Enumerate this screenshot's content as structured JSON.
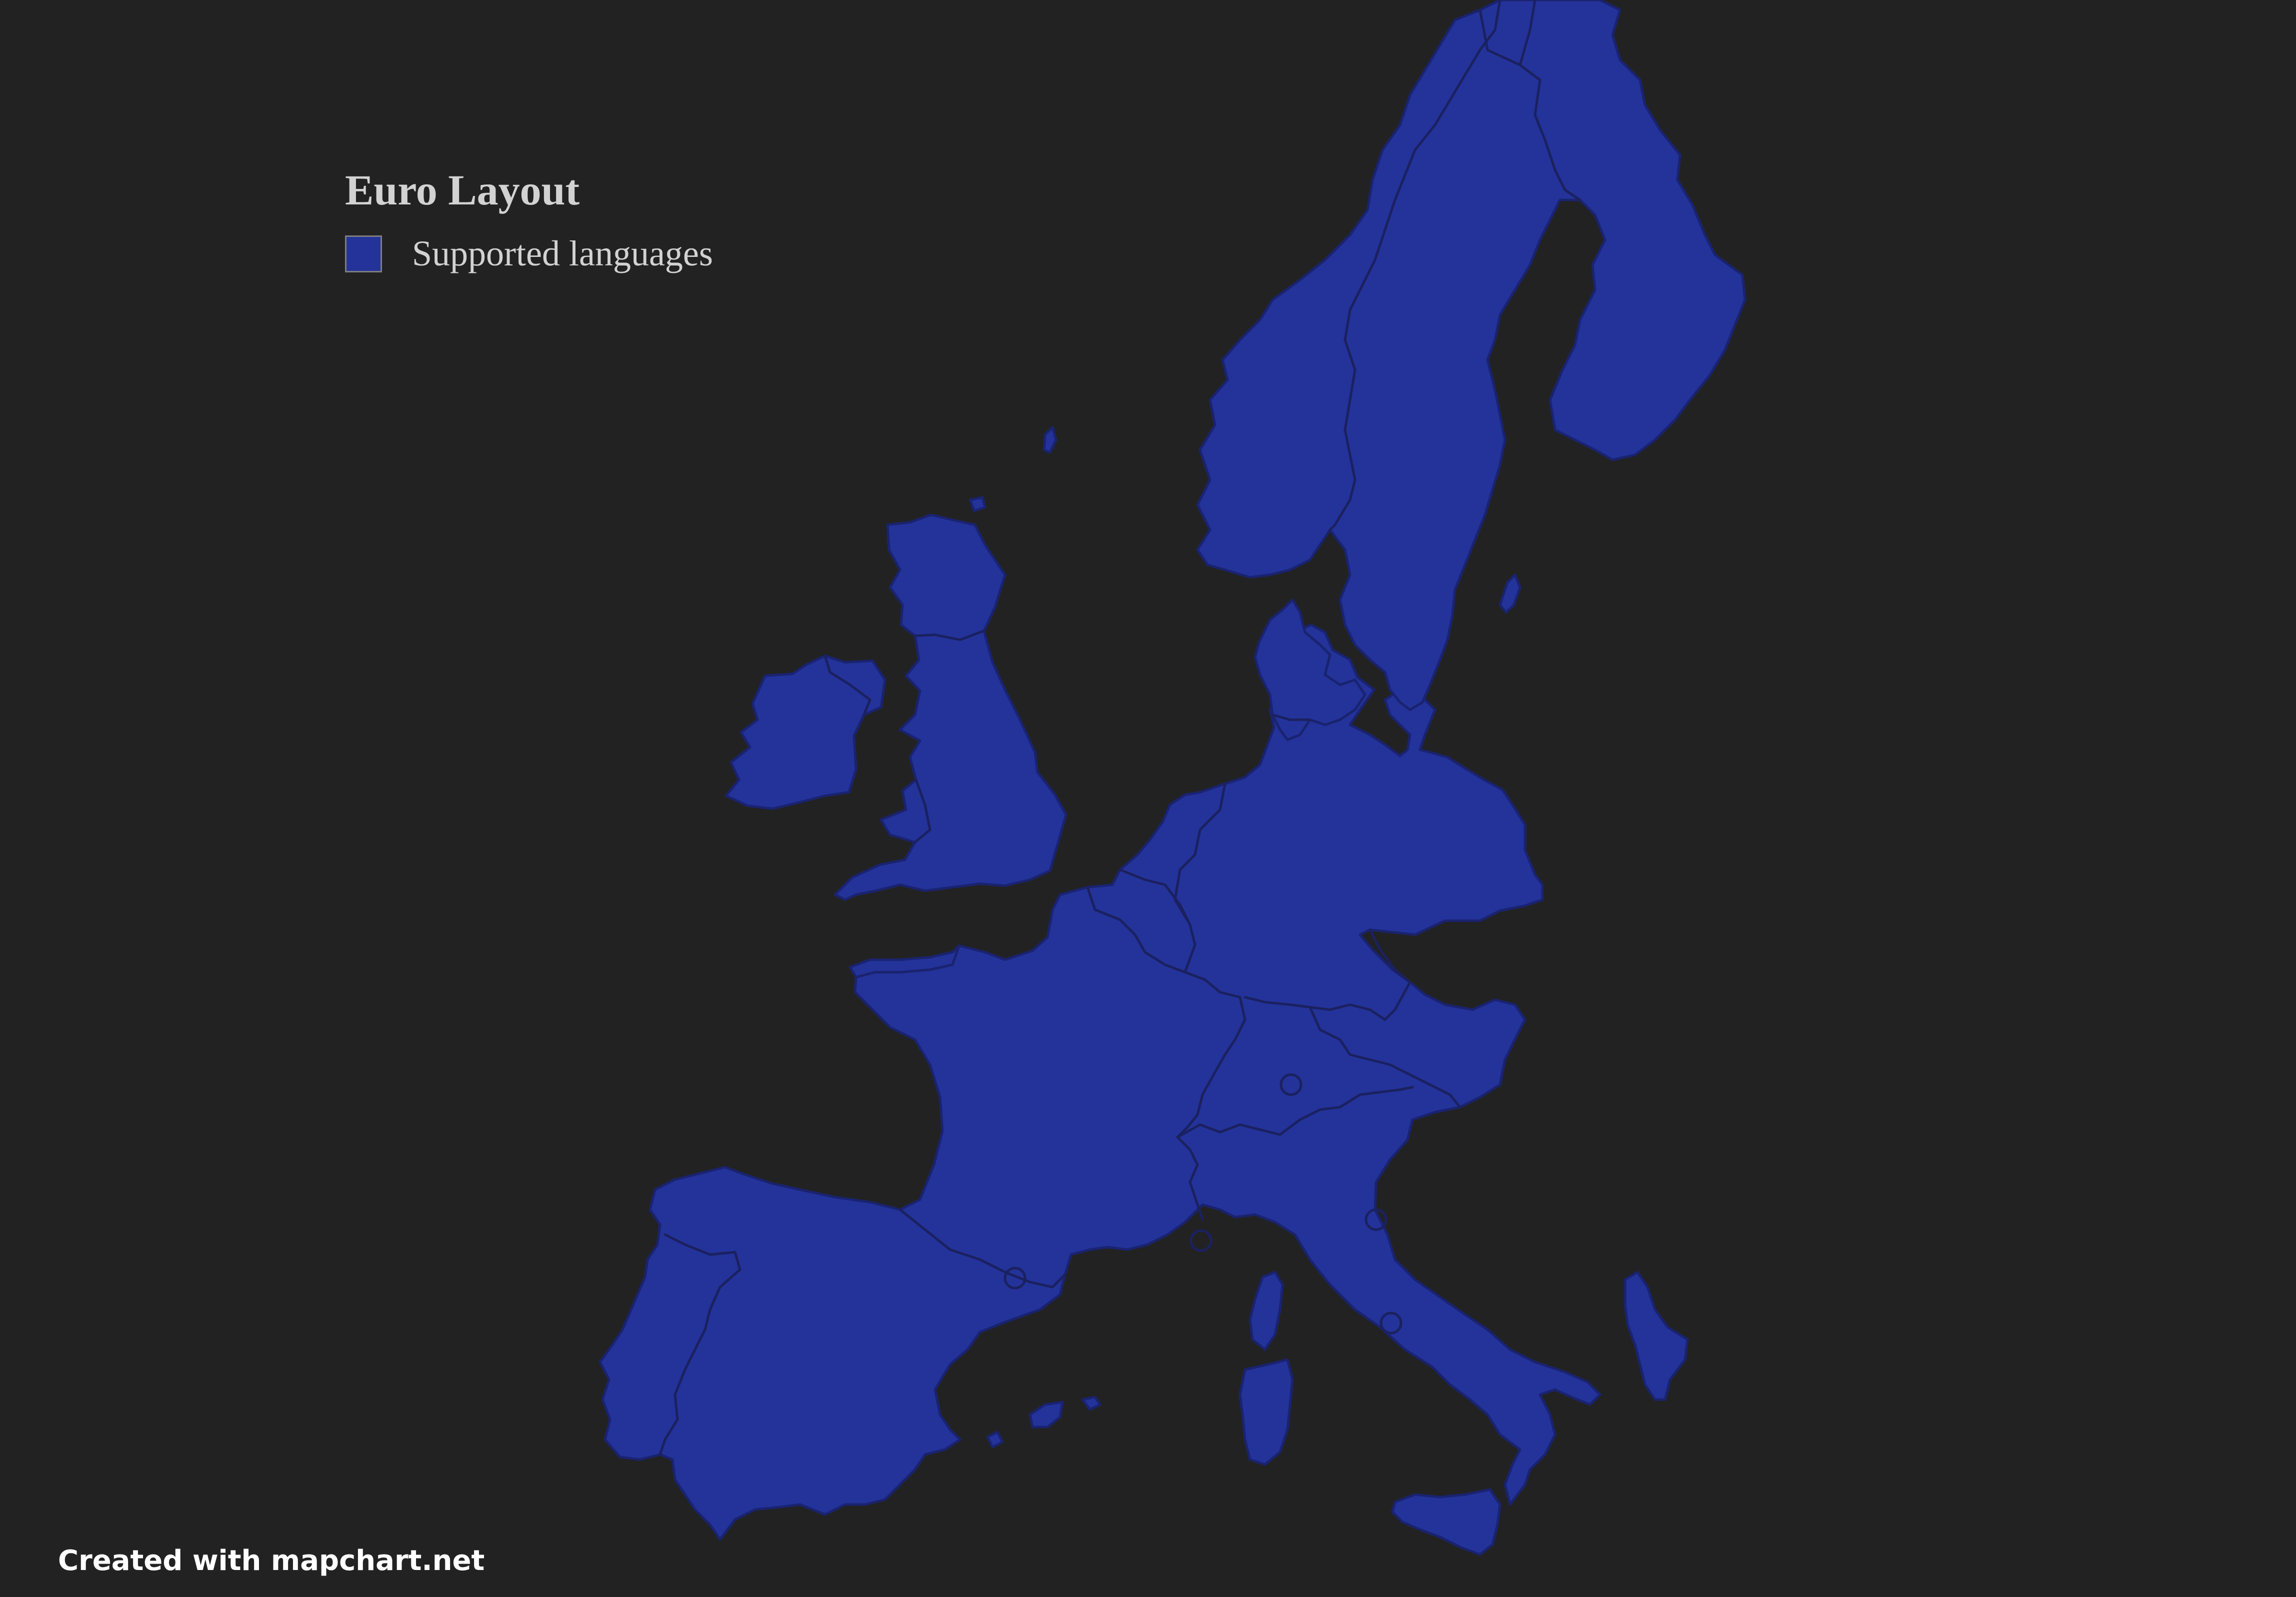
{
  "map": {
    "background_color": "#222222",
    "highlight_color": "#23339a",
    "highlighted_regions": [
      "Portugal",
      "Spain",
      "France",
      "Belgium",
      "Netherlands",
      "Luxembourg",
      "Germany",
      "Switzerland",
      "Austria",
      "Italy",
      "Liechtenstein",
      "Monaco",
      "San Marino",
      "Vatican City",
      "Andorra",
      "United Kingdom",
      "Ireland",
      "Denmark",
      "Norway",
      "Sweden",
      "Finland",
      "Corsica",
      "Sardinia",
      "Sicily",
      "Balearic Islands"
    ]
  },
  "legend": {
    "title": "Euro Layout",
    "items": [
      {
        "label": "Supported languages",
        "color": "#23339a"
      }
    ]
  },
  "credit": {
    "text": "Created with mapchart.net"
  }
}
